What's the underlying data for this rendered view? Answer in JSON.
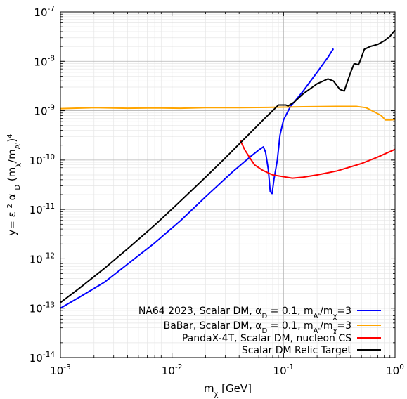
{
  "chart_data": {
    "type": "line",
    "xscale": "log",
    "yscale": "log",
    "xlim": [
      0.001,
      1.0
    ],
    "ylim": [
      1e-14,
      1e-07
    ],
    "grid": true,
    "legend_position": "bottom-right",
    "xlabel": {
      "base": "m",
      "sub": "χ",
      "rest": " [GeV]"
    },
    "ylabel": {
      "parts": [
        {
          "t": "y= ε ",
          "k": "n"
        },
        {
          "t": "2",
          "k": "sup"
        },
        {
          "t": " α ",
          "k": "n"
        },
        {
          "t": "D",
          "k": "sub"
        },
        {
          "t": " (m",
          "k": "n"
        },
        {
          "t": "χ",
          "k": "sub"
        },
        {
          "t": "/m",
          "k": "n"
        },
        {
          "t": "A'",
          "k": "sub"
        },
        {
          "t": ")",
          "k": "n"
        },
        {
          "t": "4",
          "k": "sup"
        }
      ]
    },
    "x_ticks": [
      {
        "value": 0.001,
        "base": "10",
        "exp": "-3"
      },
      {
        "value": 0.01,
        "base": "10",
        "exp": "-2"
      },
      {
        "value": 0.1,
        "base": "10",
        "exp": "-1"
      },
      {
        "value": 1.0,
        "base": "10",
        "exp": "0"
      }
    ],
    "y_ticks": [
      {
        "value": 1e-14,
        "base": "10",
        "exp": "-14"
      },
      {
        "value": 1e-13,
        "base": "10",
        "exp": "-13"
      },
      {
        "value": 1e-12,
        "base": "10",
        "exp": "-12"
      },
      {
        "value": 1e-11,
        "base": "10",
        "exp": "-11"
      },
      {
        "value": 1e-10,
        "base": "10",
        "exp": "-10"
      },
      {
        "value": 1e-09,
        "base": "10",
        "exp": "-9"
      },
      {
        "value": 1e-08,
        "base": "10",
        "exp": "-8"
      },
      {
        "value": 1e-07,
        "base": "10",
        "exp": "-7"
      }
    ],
    "series": [
      {
        "id": "na64",
        "color": "#0000ff",
        "legend": [
          {
            "t": "NA64 2023, Scalar DM, α",
            "k": "n"
          },
          {
            "t": "D",
            "k": "sub"
          },
          {
            "t": " = 0.1, m",
            "k": "n"
          },
          {
            "t": "A'",
            "k": "sub"
          },
          {
            "t": "/m",
            "k": "n"
          },
          {
            "t": "χ",
            "k": "sub"
          },
          {
            "t": "=3",
            "k": "n"
          }
        ],
        "points": [
          [
            0.001,
            1e-13
          ],
          [
            0.0015,
            1.7e-13
          ],
          [
            0.0025,
            3.4e-13
          ],
          [
            0.004,
            7.8e-13
          ],
          [
            0.007,
            2.1e-12
          ],
          [
            0.012,
            6e-12
          ],
          [
            0.02,
            1.8e-11
          ],
          [
            0.035,
            5.8e-11
          ],
          [
            0.05,
            1.15e-10
          ],
          [
            0.06,
            1.6e-10
          ],
          [
            0.066,
            1.85e-10
          ],
          [
            0.069,
            1.45e-10
          ],
          [
            0.073,
            6.5e-11
          ],
          [
            0.076,
            2.3e-11
          ],
          [
            0.079,
            2.1e-11
          ],
          [
            0.082,
            4e-11
          ],
          [
            0.088,
            1e-10
          ],
          [
            0.093,
            3.2e-10
          ],
          [
            0.1,
            6.5e-10
          ],
          [
            0.115,
            1.2e-09
          ],
          [
            0.15,
            2.5e-09
          ],
          [
            0.2,
            6e-09
          ],
          [
            0.25,
            1.2e-08
          ],
          [
            0.28,
            1.8e-08
          ]
        ]
      },
      {
        "id": "babar",
        "color": "#ffa500",
        "legend": [
          {
            "t": "BaBar, Scalar DM, α",
            "k": "n"
          },
          {
            "t": "D",
            "k": "sub"
          },
          {
            "t": " = 0.1, m",
            "k": "n"
          },
          {
            "t": "A'",
            "k": "sub"
          },
          {
            "t": "/m",
            "k": "n"
          },
          {
            "t": "χ",
            "k": "sub"
          },
          {
            "t": "=3",
            "k": "n"
          }
        ],
        "points": [
          [
            0.001,
            1.1e-09
          ],
          [
            0.002,
            1.15e-09
          ],
          [
            0.004,
            1.12e-09
          ],
          [
            0.007,
            1.14e-09
          ],
          [
            0.012,
            1.12e-09
          ],
          [
            0.02,
            1.15e-09
          ],
          [
            0.04,
            1.15e-09
          ],
          [
            0.08,
            1.17e-09
          ],
          [
            0.15,
            1.2e-09
          ],
          [
            0.3,
            1.22e-09
          ],
          [
            0.45,
            1.22e-09
          ],
          [
            0.55,
            1.15e-09
          ],
          [
            0.65,
            9.5e-10
          ],
          [
            0.75,
            8e-10
          ],
          [
            0.82,
            6.5e-10
          ],
          [
            0.9,
            6.5e-10
          ],
          [
            1.0,
            6.6e-10
          ]
        ]
      },
      {
        "id": "pandax",
        "color": "#ff0000",
        "legend": [
          {
            "t": "PandaX-4T, Scalar DM, nucleon CS",
            "k": "n"
          }
        ],
        "points": [
          [
            0.041,
            2.5e-10
          ],
          [
            0.045,
            1.6e-10
          ],
          [
            0.05,
            1.1e-10
          ],
          [
            0.055,
            8e-11
          ],
          [
            0.065,
            6.2e-11
          ],
          [
            0.08,
            5e-11
          ],
          [
            0.1,
            4.6e-11
          ],
          [
            0.12,
            4.3e-11
          ],
          [
            0.15,
            4.5e-11
          ],
          [
            0.2,
            5e-11
          ],
          [
            0.3,
            6e-11
          ],
          [
            0.5,
            8.5e-11
          ],
          [
            0.7,
            1.15e-10
          ],
          [
            1.0,
            1.65e-10
          ]
        ]
      },
      {
        "id": "relic",
        "color": "#000000",
        "legend": [
          {
            "t": "Scalar DM Relic Target",
            "k": "n"
          }
        ],
        "points": [
          [
            0.001,
            1.3e-13
          ],
          [
            0.0015,
            2.6e-13
          ],
          [
            0.0025,
            6.5e-13
          ],
          [
            0.004,
            1.6e-12
          ],
          [
            0.007,
            4.8e-12
          ],
          [
            0.012,
            1.5e-11
          ],
          [
            0.02,
            4.5e-11
          ],
          [
            0.03,
            1.1e-10
          ],
          [
            0.05,
            3.5e-10
          ],
          [
            0.07,
            7.5e-10
          ],
          [
            0.09,
            1.3e-09
          ],
          [
            0.105,
            1.3e-09
          ],
          [
            0.11,
            1.25e-09
          ],
          [
            0.125,
            1.5e-09
          ],
          [
            0.15,
            2.2e-09
          ],
          [
            0.2,
            3.5e-09
          ],
          [
            0.25,
            4.4e-09
          ],
          [
            0.28,
            4e-09
          ],
          [
            0.32,
            2.7e-09
          ],
          [
            0.35,
            2.5e-09
          ],
          [
            0.4,
            6e-09
          ],
          [
            0.43,
            9e-09
          ],
          [
            0.47,
            8.5e-09
          ],
          [
            0.5,
            1.2e-08
          ],
          [
            0.53,
            1.75e-08
          ],
          [
            0.6,
            2e-08
          ],
          [
            0.7,
            2.2e-08
          ],
          [
            0.8,
            2.6e-08
          ],
          [
            0.9,
            3.2e-08
          ],
          [
            1.0,
            4.3e-08
          ]
        ]
      }
    ]
  }
}
